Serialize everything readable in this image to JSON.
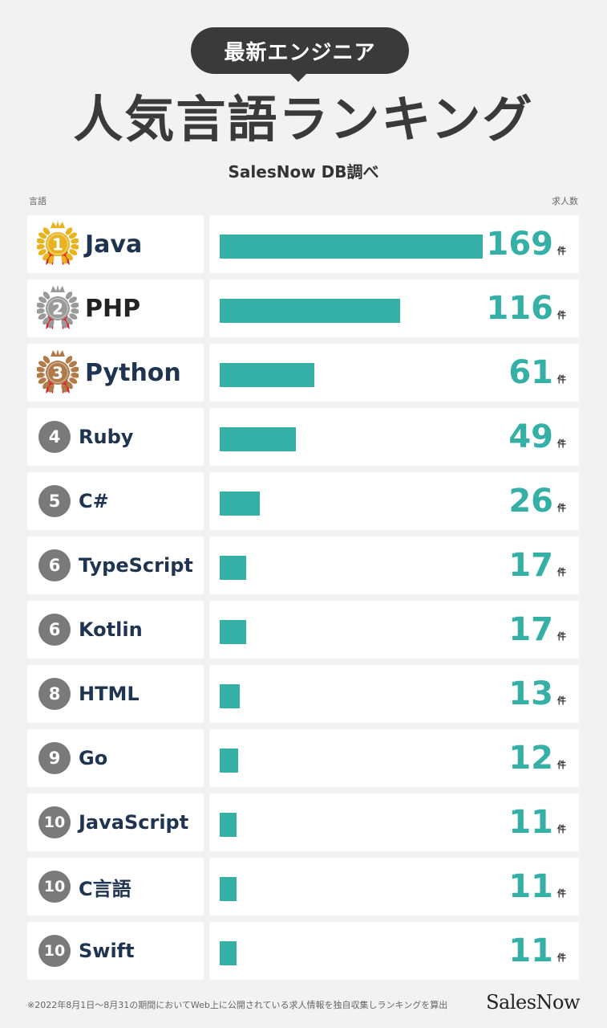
{
  "header": {
    "bubble": "最新エンジニア",
    "title": "人気言語ランキング",
    "subtitle": "SalesNow DB調べ",
    "col_language": "言語",
    "col_count": "求人数"
  },
  "unit": "件",
  "footer": {
    "note": "※2022年8月1日〜8月31の期間においてWeb上に公開されている求人情報を独自収集しランキングを算出",
    "brand": "SalesNow"
  },
  "colors": {
    "bar": "#35b0a7",
    "gold": "#e9b320",
    "silver": "#9a9a9a",
    "bronze": "#b07a4a",
    "ribbon": "#d9262c",
    "rank_circle": "#7a7a7a",
    "lang_text": "#1f3450"
  },
  "chart_data": {
    "type": "bar",
    "orientation": "horizontal",
    "title": "人気言語ランキング",
    "xlabel": "求人数",
    "ylabel": "言語",
    "xlim": [
      0,
      169
    ],
    "categories": [
      "Java",
      "PHP",
      "Python",
      "Ruby",
      "C#",
      "TypeScript",
      "Kotlin",
      "HTML",
      "Go",
      "JavaScript",
      "C言語",
      "Swift"
    ],
    "ranks": [
      "1",
      "2",
      "3",
      "4",
      "5",
      "6",
      "6",
      "8",
      "9",
      "10",
      "10",
      "10"
    ],
    "values": [
      169,
      116,
      61,
      49,
      26,
      17,
      17,
      13,
      12,
      11,
      11,
      11
    ],
    "medals": [
      "gold",
      "silver",
      "bronze"
    ]
  }
}
